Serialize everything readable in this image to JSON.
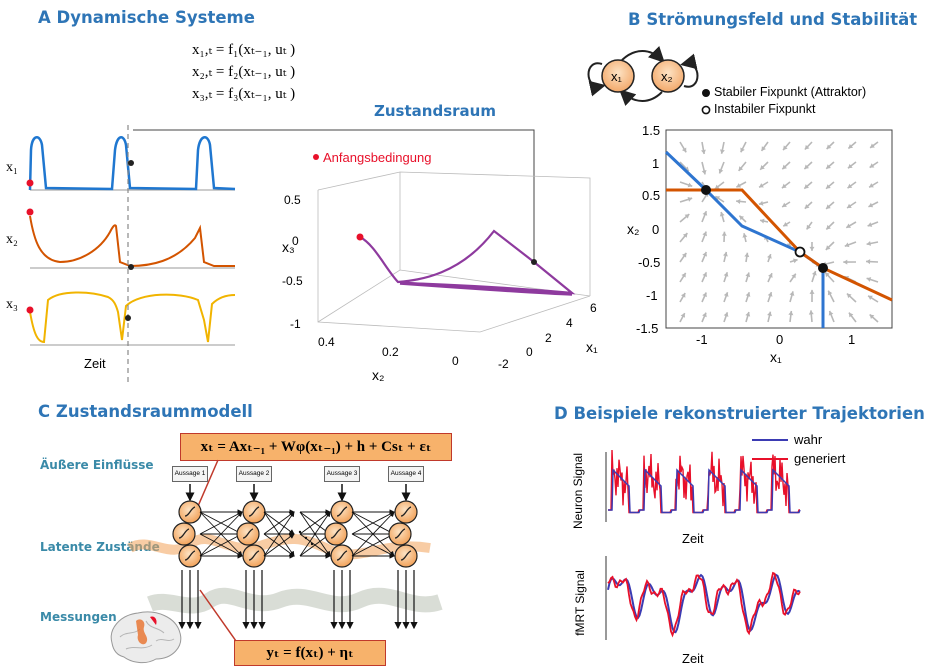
{
  "panel_a": {
    "title": "A Dynamische Systeme",
    "equations": [
      "x₁,ₜ = f₁(xₜ₋₁, uₜ )",
      "x₂,ₜ = f₂(xₜ₋₁, uₜ )",
      "x₃,ₜ = f₃(xₜ₋₁, uₜ )"
    ],
    "series_labels": [
      "x₁",
      "x₂",
      "x₃"
    ],
    "time_label": "Zeit",
    "state_space_title": "Zustandsraum",
    "initial_condition_label": "Anfangsbedingung",
    "x3_ticks": [
      "0.5",
      "0",
      "-0.5",
      "-1"
    ],
    "x2_ticks": [
      "0.4",
      "0.2",
      "0"
    ],
    "x1_ticks": [
      "-2",
      "0",
      "2",
      "4",
      "6"
    ],
    "x1_axis": "x₁",
    "x2_axis": "x₂",
    "x3_axis": "x₃",
    "colors": {
      "x1": "#1f77d0",
      "x2": "#d35400",
      "x3": "#f1b400",
      "trajectory": "#8e3a9e",
      "initial": "#e8102a"
    }
  },
  "panel_b": {
    "title": "B Strömungsfeld und Stabilität",
    "nodes": [
      "x₁",
      "x₂"
    ],
    "legend": {
      "stable": "Stabiler Fixpunkt (Attraktor)",
      "unstable": "Instabiler Fixpunkt"
    },
    "y_ticks": [
      "1.5",
      "1",
      "0.5",
      "0",
      "-0.5",
      "-1",
      "-1.5"
    ],
    "x_ticks": [
      "-1",
      "0",
      "1"
    ],
    "xlabel": "x₁",
    "ylabel": "x₂"
  },
  "panel_c": {
    "title": "C Zustandsraummodell",
    "rows": [
      "Äußere Einflüsse",
      "Latente Zustände",
      "Messungen"
    ],
    "inputs": [
      "Aussage 1",
      "Aussage 2",
      "Aussage 3",
      "Aussage 4"
    ],
    "eq_top": "xₜ = Axₜ₋₁ + Wφ(xₜ₋₁) + h + Csₜ + εₜ",
    "eq_bottom": "yₜ = f(xₜ) + ηₜ"
  },
  "panel_d": {
    "title": "D Beispiele rekonstruierter Trajektorien",
    "legend": [
      "wahr",
      "generiert"
    ],
    "ylabels": [
      "Neuron Signal",
      "fMRT Signal"
    ],
    "xlabel": "Zeit",
    "colors": {
      "true": "#3b3bb3",
      "generated": "#e8102a"
    }
  }
}
